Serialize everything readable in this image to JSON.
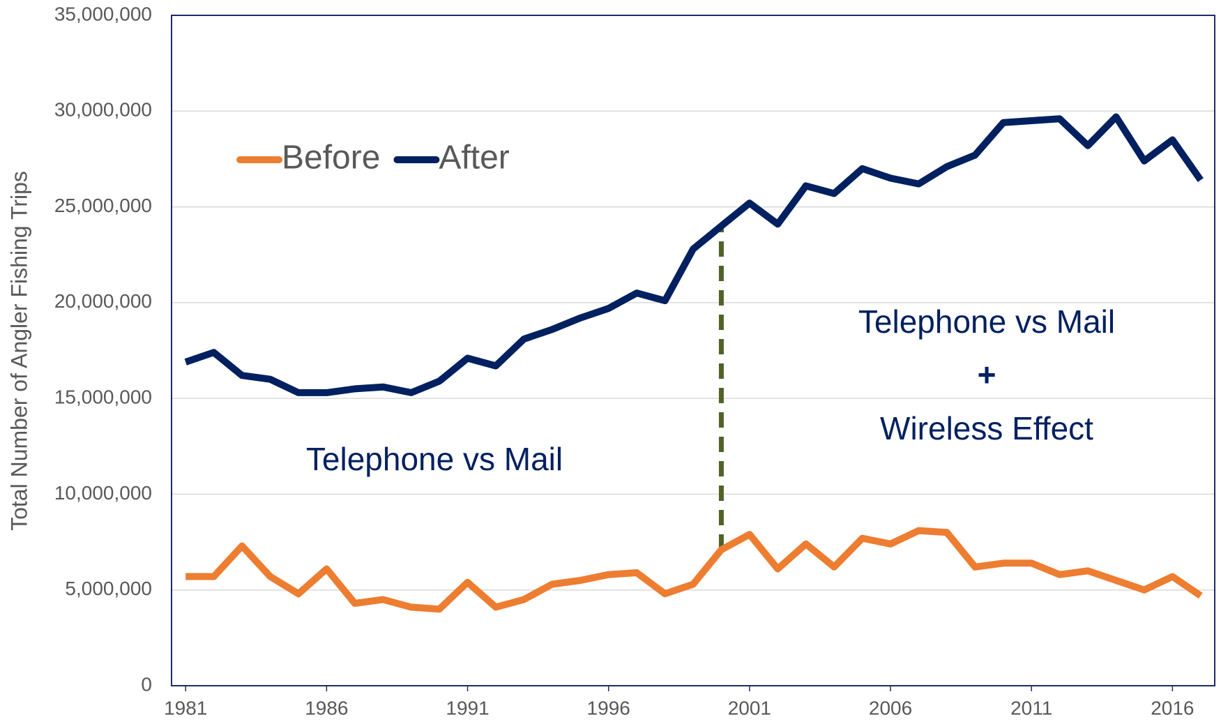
{
  "chart_data": {
    "type": "line",
    "y_label": "Total Number of Angler Fishing Trips",
    "x": [
      1981,
      1982,
      1983,
      1984,
      1985,
      1986,
      1987,
      1988,
      1989,
      1990,
      1991,
      1992,
      1993,
      1994,
      1995,
      1996,
      1997,
      1998,
      1999,
      2000,
      2001,
      2002,
      2003,
      2004,
      2005,
      2006,
      2007,
      2008,
      2009,
      2010,
      2011,
      2012,
      2013,
      2014,
      2015,
      2016,
      2017
    ],
    "series": [
      {
        "name": "Before",
        "color": "#ed7d31",
        "values": [
          5700000,
          5700000,
          7300000,
          5700000,
          4800000,
          6100000,
          4300000,
          4500000,
          4100000,
          4000000,
          5400000,
          4100000,
          4500000,
          5300000,
          5500000,
          5800000,
          5900000,
          4800000,
          5300000,
          7100000,
          7900000,
          6100000,
          7400000,
          6200000,
          7700000,
          7400000,
          8100000,
          8000000,
          6200000,
          6400000,
          6400000,
          5800000,
          6000000,
          5500000,
          5000000,
          5700000,
          4700000
        ]
      },
      {
        "name": "After",
        "color": "#002060",
        "values": [
          16900000,
          17400000,
          16200000,
          16000000,
          15300000,
          15300000,
          15500000,
          15600000,
          15300000,
          15900000,
          17100000,
          16700000,
          18100000,
          18600000,
          19200000,
          19700000,
          20500000,
          20100000,
          22800000,
          24000000,
          25200000,
          24100000,
          26100000,
          25700000,
          27000000,
          26500000,
          26200000,
          27100000,
          27700000,
          29400000,
          29500000,
          29600000,
          28200000,
          29700000,
          27400000,
          28500000,
          26400000
        ]
      }
    ],
    "xlim": [
      1980.5,
      2017.5
    ],
    "xticks": [
      1981,
      1986,
      1991,
      1996,
      2001,
      2006,
      2011,
      2016
    ],
    "ylim": [
      0,
      35000000
    ],
    "yticks": [
      0,
      {
        "value": 5000000,
        "label": "5,000,000"
      },
      {
        "value": 10000000,
        "label": "10,000,000"
      },
      {
        "value": 15000000,
        "label": "15,000,000"
      },
      {
        "value": 20000000,
        "label": "20,000,000"
      },
      {
        "value": 25000000,
        "label": "25,000,000"
      },
      {
        "value": 30000000,
        "label": "30,000,000"
      },
      {
        "value": 35000000,
        "label": "35,000,000"
      }
    ],
    "grid": true,
    "legend": "top-left",
    "annotations": [
      "Telephone vs Mail",
      "Telephone vs Mail",
      "+",
      "Wireless Effect"
    ]
  }
}
